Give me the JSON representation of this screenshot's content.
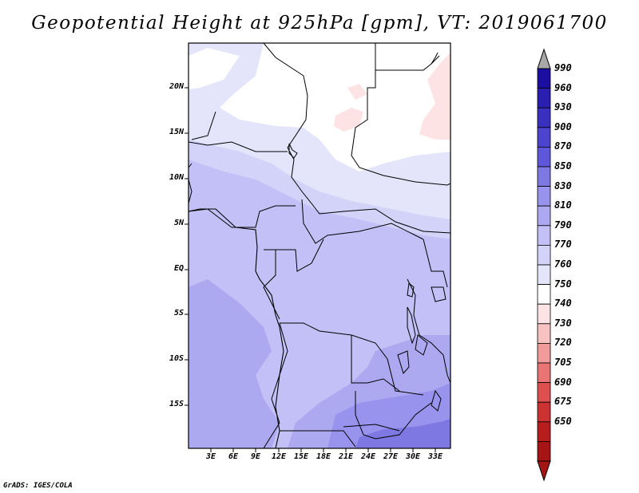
{
  "title": "Geopotential Height at 925hPa [gpm], VT: 2019061700",
  "footer": "GrADS: IGES/COLA",
  "map": {
    "lat_labels": [
      "20N",
      "15N",
      "10N",
      "5N",
      "EQ",
      "5S",
      "10S",
      "15S"
    ],
    "lon_labels": [
      "3E",
      "6E",
      "9E",
      "12E",
      "15E",
      "18E",
      "21E",
      "24E",
      "27E",
      "30E",
      "33E"
    ],
    "colors": {
      "white": "#ffffff",
      "pale_pink": "#fde3e3",
      "lav_770": "#e4e4fa",
      "lav_790": "#d3d2f8",
      "lav_810": "#c2c0f6",
      "lav_830": "#ada9f1",
      "lav_850": "#9893ec",
      "lav_870": "#7e78e2"
    }
  },
  "colorbar": {
    "labels": [
      "990",
      "960",
      "930",
      "900",
      "870",
      "850",
      "830",
      "810",
      "790",
      "770",
      "760",
      "750",
      "740",
      "730",
      "720",
      "705",
      "690",
      "675",
      "650"
    ],
    "colors": [
      "#1c0ea0",
      "#2a1fb0",
      "#3a30c0",
      "#4c43cf",
      "#5f57da",
      "#7e78e2",
      "#9893ec",
      "#ada9f1",
      "#c2c0f6",
      "#d3d2f8",
      "#e4e4fa",
      "#ffffff",
      "#fde3e3",
      "#f8c2c2",
      "#f19b9b",
      "#e87474",
      "#de4f4f",
      "#cd3232",
      "#b81d1d",
      "#a51515"
    ],
    "over_color": "#a8a8a8",
    "under_color": "#a51515"
  }
}
